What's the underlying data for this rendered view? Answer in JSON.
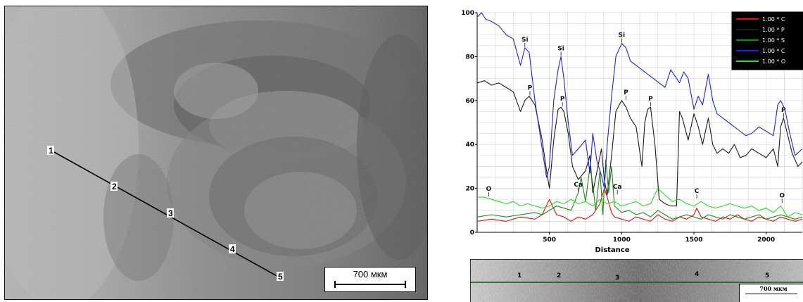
{
  "micrograph": {
    "point_labels": [
      "1",
      "2",
      "3",
      "4",
      "5"
    ],
    "scale_bar": "700 мкм"
  },
  "chart_data": {
    "type": "line",
    "title": "",
    "xlabel": "Distance",
    "ylabel": "",
    "xlim": [
      0,
      2250
    ],
    "ylim": [
      0,
      100
    ],
    "x_ticks": [
      500,
      1000,
      1500,
      2000
    ],
    "y_ticks": [
      0,
      20,
      40,
      60,
      80,
      100
    ],
    "grid": true,
    "legend_position": "top-right",
    "legend_entries": [
      "1.00 * C",
      "1.00 * P",
      "1.00 * S",
      "1.00 * C",
      "1.00 * O"
    ],
    "series": [
      {
        "color": "#e01010",
        "x": [
          0,
          100,
          200,
          300,
          400,
          450,
          500,
          550,
          600,
          650,
          700,
          750,
          800,
          850,
          880,
          900,
          930,
          950,
          1000,
          1050,
          1100,
          1150,
          1200,
          1250,
          1300,
          1350,
          1400,
          1450,
          1500,
          1520,
          1550,
          1600,
          1650,
          1700,
          1750,
          1800,
          1850,
          1900,
          1950,
          2000,
          2050,
          2100,
          2150,
          2200,
          2250
        ],
        "y": [
          5,
          6,
          5,
          7,
          6,
          8,
          15,
          8,
          7,
          5,
          7,
          6,
          8,
          13,
          20,
          16,
          9,
          7,
          6,
          5,
          7,
          6,
          5,
          8,
          6,
          5,
          7,
          6,
          8,
          11,
          7,
          6,
          5,
          7,
          6,
          8,
          6,
          5,
          7,
          6,
          5,
          7,
          6,
          5,
          6
        ]
      },
      {
        "color": "#1a1a1a",
        "x": [
          0,
          50,
          100,
          150,
          200,
          250,
          300,
          330,
          360,
          400,
          450,
          480,
          500,
          530,
          560,
          580,
          600,
          630,
          660,
          700,
          750,
          780,
          800,
          830,
          860,
          880,
          900,
          930,
          960,
          1000,
          1030,
          1060,
          1100,
          1140,
          1160,
          1180,
          1200,
          1230,
          1260,
          1300,
          1340,
          1380,
          1400,
          1420,
          1460,
          1500,
          1530,
          1560,
          1600,
          1630,
          1660,
          1700,
          1740,
          1780,
          1820,
          1860,
          1900,
          1950,
          2000,
          2050,
          2080,
          2100,
          2120,
          2150,
          2180,
          2220,
          2250
        ],
        "y": [
          68,
          69,
          67,
          68,
          66,
          64,
          55,
          60,
          62,
          58,
          42,
          28,
          20,
          42,
          56,
          57,
          55,
          45,
          30,
          24,
          28,
          35,
          18,
          28,
          38,
          24,
          17,
          35,
          55,
          60,
          57,
          52,
          48,
          30,
          50,
          56,
          57,
          40,
          15,
          13,
          12,
          12,
          55,
          52,
          42,
          54,
          48,
          40,
          52,
          40,
          36,
          38,
          36,
          40,
          34,
          35,
          38,
          36,
          34,
          38,
          30,
          48,
          52,
          44,
          36,
          30,
          32
        ]
      },
      {
        "color": "#1a8a1a",
        "x": [
          0,
          100,
          200,
          300,
          400,
          450,
          500,
          550,
          600,
          650,
          700,
          720,
          750,
          780,
          800,
          820,
          850,
          870,
          890,
          910,
          930,
          950,
          1000,
          1050,
          1100,
          1150,
          1200,
          1250,
          1300,
          1350,
          1400,
          1450,
          1500,
          1550,
          1600,
          1650,
          1700,
          1750,
          1800,
          1850,
          1900,
          1950,
          2000,
          2050,
          2100,
          2150,
          2200,
          2250
        ],
        "y": [
          7,
          8,
          7,
          8,
          9,
          8,
          10,
          12,
          11,
          10,
          18,
          25,
          14,
          30,
          22,
          10,
          28,
          8,
          33,
          18,
          30,
          12,
          9,
          10,
          8,
          9,
          7,
          10,
          8,
          6,
          7,
          8,
          7,
          6,
          8,
          7,
          6,
          8,
          7,
          6,
          7,
          8,
          6,
          7,
          8,
          7,
          6,
          7
        ]
      },
      {
        "color": "#2222dd",
        "x": [
          0,
          30,
          60,
          100,
          150,
          200,
          250,
          300,
          330,
          360,
          400,
          450,
          480,
          500,
          530,
          560,
          580,
          600,
          630,
          660,
          700,
          750,
          780,
          800,
          830,
          860,
          880,
          900,
          930,
          960,
          1000,
          1030,
          1060,
          1100,
          1140,
          1180,
          1220,
          1260,
          1300,
          1340,
          1380,
          1400,
          1430,
          1460,
          1500,
          1530,
          1560,
          1600,
          1630,
          1660,
          1700,
          1740,
          1780,
          1820,
          1860,
          1900,
          1950,
          2000,
          2050,
          2080,
          2100,
          2130,
          2160,
          2200,
          2250
        ],
        "y": [
          98,
          100,
          97,
          96,
          94,
          90,
          88,
          76,
          84,
          82,
          60,
          38,
          25,
          30,
          60,
          74,
          80,
          70,
          50,
          35,
          38,
          42,
          27,
          45,
          32,
          26,
          20,
          40,
          62,
          80,
          86,
          84,
          78,
          76,
          74,
          72,
          70,
          68,
          66,
          74,
          70,
          68,
          73,
          70,
          56,
          62,
          58,
          72,
          60,
          54,
          52,
          50,
          48,
          46,
          44,
          45,
          48,
          46,
          44,
          58,
          60,
          56,
          46,
          35,
          38
        ]
      },
      {
        "color": "#22dd22",
        "x": [
          0,
          50,
          100,
          150,
          200,
          250,
          300,
          350,
          400,
          450,
          500,
          550,
          600,
          650,
          700,
          750,
          800,
          850,
          900,
          950,
          1000,
          1050,
          1100,
          1150,
          1200,
          1250,
          1300,
          1350,
          1400,
          1450,
          1500,
          1550,
          1600,
          1650,
          1700,
          1750,
          1800,
          1850,
          1900,
          1950,
          2000,
          2050,
          2100,
          2150,
          2200,
          2250
        ],
        "y": [
          16,
          16,
          15,
          14,
          13,
          14,
          12,
          13,
          12,
          11,
          12,
          14,
          13,
          15,
          13,
          14,
          12,
          15,
          13,
          14,
          12,
          13,
          14,
          12,
          13,
          20,
          17,
          14,
          15,
          13,
          12,
          14,
          12,
          11,
          12,
          13,
          12,
          11,
          12,
          10,
          11,
          9,
          12,
          7,
          9,
          8
        ]
      }
    ],
    "peak_labels": [
      {
        "text": "Si",
        "x": 330,
        "y": 84
      },
      {
        "text": "Si",
        "x": 580,
        "y": 80
      },
      {
        "text": "Si",
        "x": 1000,
        "y": 86
      },
      {
        "text": "P",
        "x": 365,
        "y": 62
      },
      {
        "text": "P",
        "x": 590,
        "y": 57
      },
      {
        "text": "P",
        "x": 1030,
        "y": 60
      },
      {
        "text": "P",
        "x": 1200,
        "y": 57
      },
      {
        "text": "P",
        "x": 2120,
        "y": 52
      },
      {
        "text": "O",
        "x": 80,
        "y": 16
      },
      {
        "text": "Ca",
        "x": 700,
        "y": 18
      },
      {
        "text": "Ca",
        "x": 970,
        "y": 17
      },
      {
        "text": "C",
        "x": 1520,
        "y": 15
      },
      {
        "text": "O",
        "x": 2110,
        "y": 13
      }
    ]
  },
  "strip": {
    "point_labels": [
      "1",
      "2",
      "3",
      "4",
      "5"
    ],
    "scale_bar": "700 мкм"
  }
}
